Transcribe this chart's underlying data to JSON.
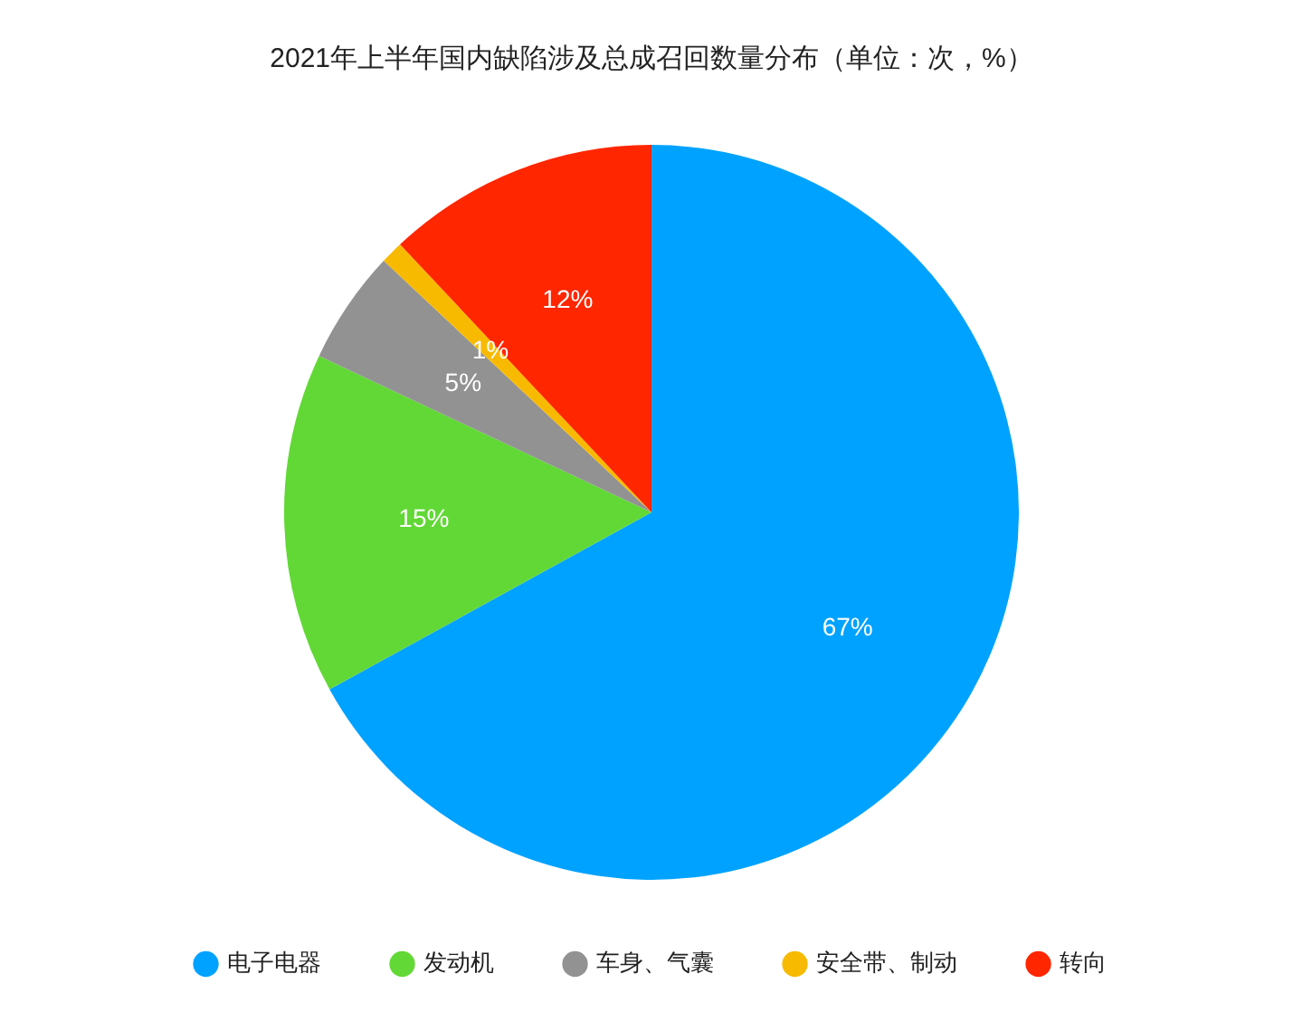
{
  "chart_data": {
    "type": "pie",
    "title": "2021年上半年国内缺陷涉及总成召回数量分布（单位：次，%）",
    "categories": [
      "电子电器",
      "发动机",
      "车身、气囊",
      "安全带、制动",
      "转向"
    ],
    "values": [
      67,
      15,
      5,
      1,
      12
    ],
    "colors": [
      "#00a2ff",
      "#62d836",
      "#929292",
      "#f8ba00",
      "#ff2600"
    ],
    "value_labels": [
      "67%",
      "15%",
      "5%",
      "1%",
      "12%"
    ],
    "legend": "bottom"
  }
}
